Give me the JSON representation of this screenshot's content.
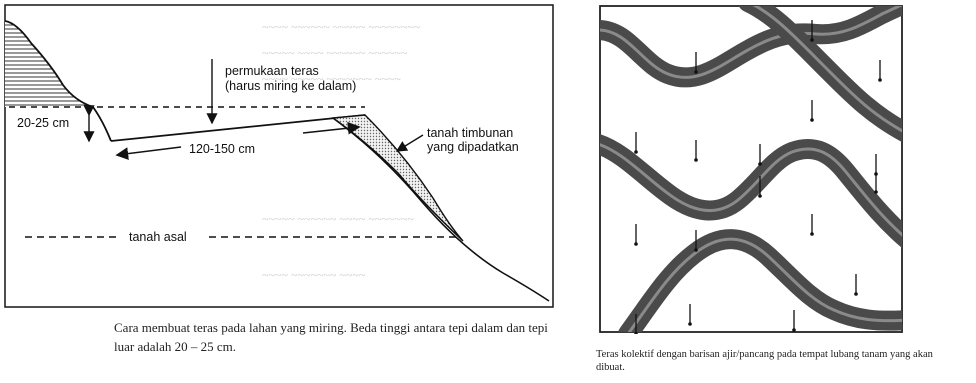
{
  "left_figure": {
    "labels": {
      "surface": "permukaan teras",
      "surface_note": "(harus miring ke dalam)",
      "height_diff": "20-25 cm",
      "width": "120-150 cm",
      "fill_soil": "tanah timbunan",
      "fill_soil_note": "yang dipadatkan",
      "original_soil": "tanah asal"
    },
    "caption": "Cara membuat teras pada lahan yang miring. Beda tinggi antara tepi dalam dan tepi luar adalah 20 – 25 cm."
  },
  "right_figure": {
    "caption": "Teras kolektif dengan barisan ajir/pancang pada tempat lubang tanam yang akan dibuat."
  }
}
